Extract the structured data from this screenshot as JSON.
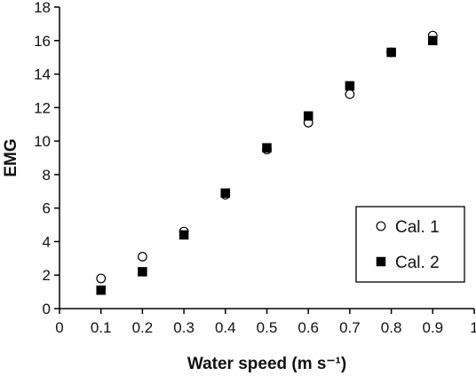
{
  "chart_data": {
    "type": "scatter",
    "title": "",
    "xlabel": "Water speed (m s⁻¹)",
    "ylabel": "EMG",
    "xlim": [
      0,
      1
    ],
    "ylim": [
      0,
      18
    ],
    "xticks": [
      "0",
      "0.1",
      "0.2",
      "0.3",
      "0.4",
      "0.5",
      "0.6",
      "0.7",
      "0.8",
      "0.9",
      "1"
    ],
    "yticks": [
      "0",
      "2",
      "4",
      "6",
      "8",
      "10",
      "12",
      "14",
      "16",
      "18"
    ],
    "grid": false,
    "legend_position": "bottom-right",
    "series": [
      {
        "name": "Cal. 1",
        "marker": "open-circle",
        "color": "#000000",
        "x": [
          0.1,
          0.2,
          0.3,
          0.4,
          0.5,
          0.6,
          0.7,
          0.8,
          0.9
        ],
        "y": [
          1.8,
          3.1,
          4.6,
          6.8,
          9.5,
          11.1,
          12.8,
          15.3,
          16.3
        ]
      },
      {
        "name": "Cal. 2",
        "marker": "filled-square",
        "color": "#000000",
        "x": [
          0.1,
          0.2,
          0.3,
          0.4,
          0.5,
          0.6,
          0.7,
          0.8,
          0.9
        ],
        "y": [
          1.1,
          2.2,
          4.4,
          6.9,
          9.6,
          11.5,
          13.3,
          15.3,
          16.0
        ]
      }
    ]
  }
}
